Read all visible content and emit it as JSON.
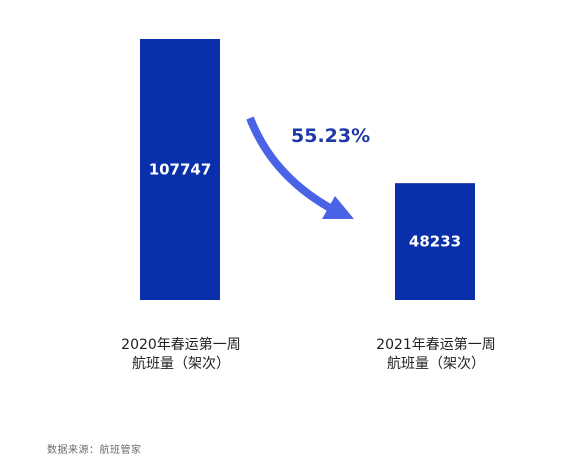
{
  "chart_data": {
    "type": "bar",
    "categories": [
      [
        "2020年春运第一周",
        "航班量（架次）"
      ],
      [
        "2021年春运第一周",
        "航班量（架次）"
      ]
    ],
    "values": [
      107747,
      48233
    ],
    "value_labels": [
      "107747",
      "48233"
    ],
    "annotation": "55.23%",
    "colors": {
      "bar": "#0a2faa",
      "arrow": "#4a62e6",
      "annotation": "#1f3aa8"
    },
    "grid": false,
    "legend": "none"
  },
  "source": "数据来源：航班管家"
}
